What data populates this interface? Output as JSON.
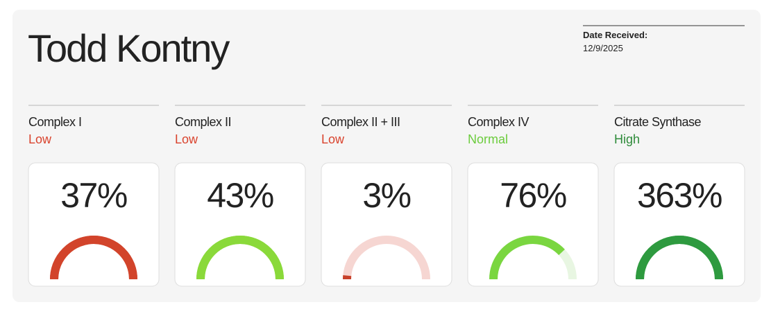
{
  "header": {
    "name": "Todd Kontny",
    "date_label": "Date Received:",
    "date": "12/9/2025"
  },
  "cards": [
    {
      "title": "Complex I",
      "status": "Low",
      "status_color": "#d9432d",
      "value": 37,
      "value_label": "37%",
      "gauge_percent": 100,
      "arc_color": "#d2442b",
      "track_color": "#d2442b"
    },
    {
      "title": "Complex II",
      "status": "Low",
      "status_color": "#d9432d",
      "value": 43,
      "value_label": "43%",
      "gauge_percent": 100,
      "arc_color": "#8ad93a",
      "track_color": "#8ad93a"
    },
    {
      "title": "Complex II + III",
      "status": "Low",
      "status_color": "#d9432d",
      "value": 3,
      "value_label": "3%",
      "gauge_percent": 3,
      "arc_color": "#c8412b",
      "track_color": "#f6d6d2"
    },
    {
      "title": "Complex IV",
      "status": "Normal",
      "status_color": "#6ccc3d",
      "value": 76,
      "value_label": "76%",
      "gauge_percent": 76,
      "arc_color": "#7ad640",
      "track_color": "#e8f6e2"
    },
    {
      "title": "Citrate Synthase",
      "status": "High",
      "status_color": "#2e8b3a",
      "value": 363,
      "value_label": "363%",
      "gauge_percent": 100,
      "arc_color": "#2e9a3f",
      "track_color": "#2e9a3f"
    }
  ]
}
